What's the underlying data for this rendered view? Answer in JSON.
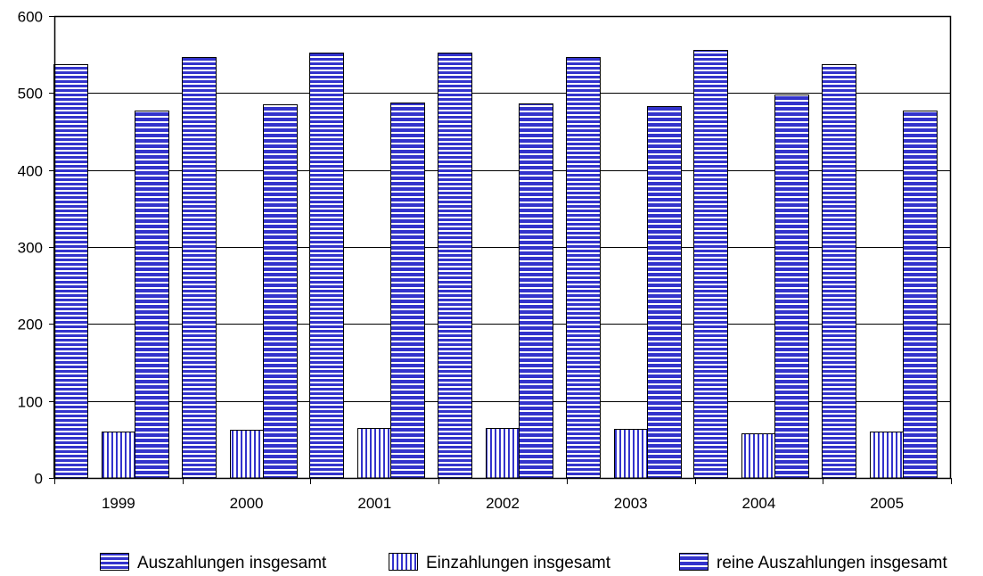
{
  "chart_data": {
    "type": "bar",
    "categories": [
      "1999",
      "2000",
      "2001",
      "2002",
      "2003",
      "2004",
      "2005"
    ],
    "series": [
      {
        "name": "Auszahlungen insgesamt",
        "values": [
          538,
          547,
          552,
          552,
          547,
          556,
          538
        ],
        "pattern": "horizontal-lines"
      },
      {
        "name": "Einzahlungen insgesamt",
        "values": [
          60,
          62,
          65,
          65,
          64,
          58,
          60
        ],
        "pattern": "vertical-lines"
      },
      {
        "name": "reine Auszahlungen insgesamt",
        "values": [
          477,
          485,
          488,
          487,
          483,
          498,
          477
        ],
        "pattern": "grid"
      }
    ],
    "ylim": [
      0,
      600
    ],
    "yticks": [
      0,
      100,
      200,
      300,
      400,
      500,
      600
    ],
    "ytick_labels": [
      "0",
      "100",
      "200",
      "300",
      "400",
      "500",
      "600"
    ],
    "grid": true,
    "legend_position": "bottom",
    "colors": {
      "fill": "#3333cc",
      "pattern_line": "#ffffff",
      "axis": "#000000",
      "grid": "#000000"
    }
  }
}
